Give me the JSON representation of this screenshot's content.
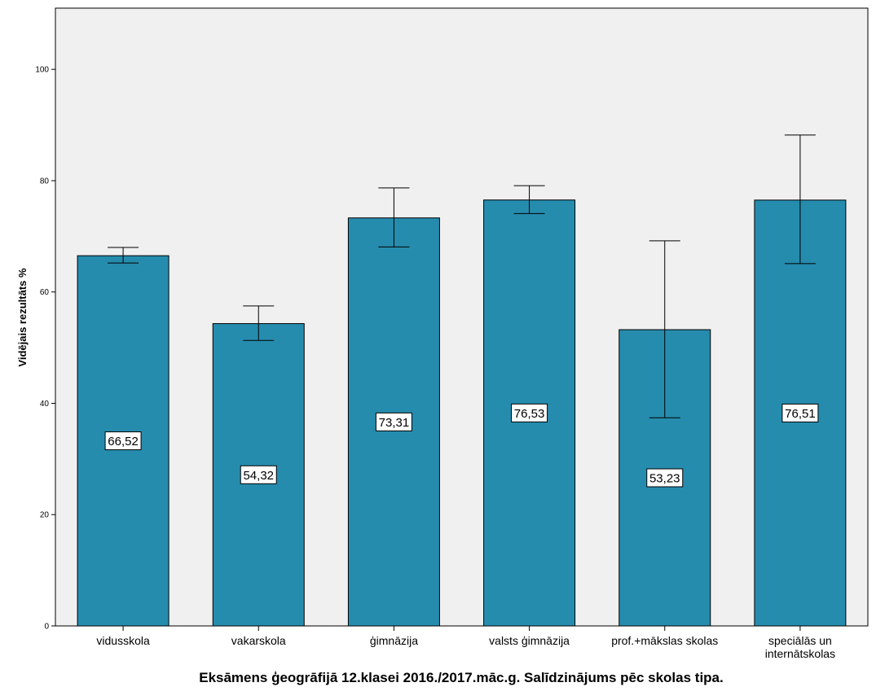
{
  "chart_data": {
    "type": "bar",
    "title": "Eksāmens ģeogrāfijā 12.klasei 2016./2017.māc.g. Salīdzinājums pēc skolas tipa.",
    "xlabel": "",
    "ylabel": "Vidējais rezultāts %",
    "ylim": [
      0,
      111
    ],
    "yticks": [
      0,
      20,
      40,
      60,
      80,
      100
    ],
    "grid": false,
    "categories": [
      [
        "vidusskola"
      ],
      [
        "vakarskola"
      ],
      [
        "ģimnāzija"
      ],
      [
        "valsts ģimnāzija"
      ],
      [
        "prof.+mākslas skolas"
      ],
      [
        "speciālās un",
        "internātskolas"
      ]
    ],
    "values": [
      66.52,
      54.32,
      73.31,
      76.53,
      53.23,
      76.51
    ],
    "data_labels": [
      "66,52",
      "54,32",
      "73,31",
      "76,53",
      "53,23",
      "76,51"
    ],
    "error_low": [
      65.2,
      51.3,
      68.1,
      74.1,
      37.4,
      65.1
    ],
    "error_high": [
      68.0,
      57.5,
      78.7,
      79.1,
      69.2,
      88.2
    ],
    "colors": {
      "bar": "#268cae",
      "plot_bg": "#f0f0f0"
    }
  }
}
